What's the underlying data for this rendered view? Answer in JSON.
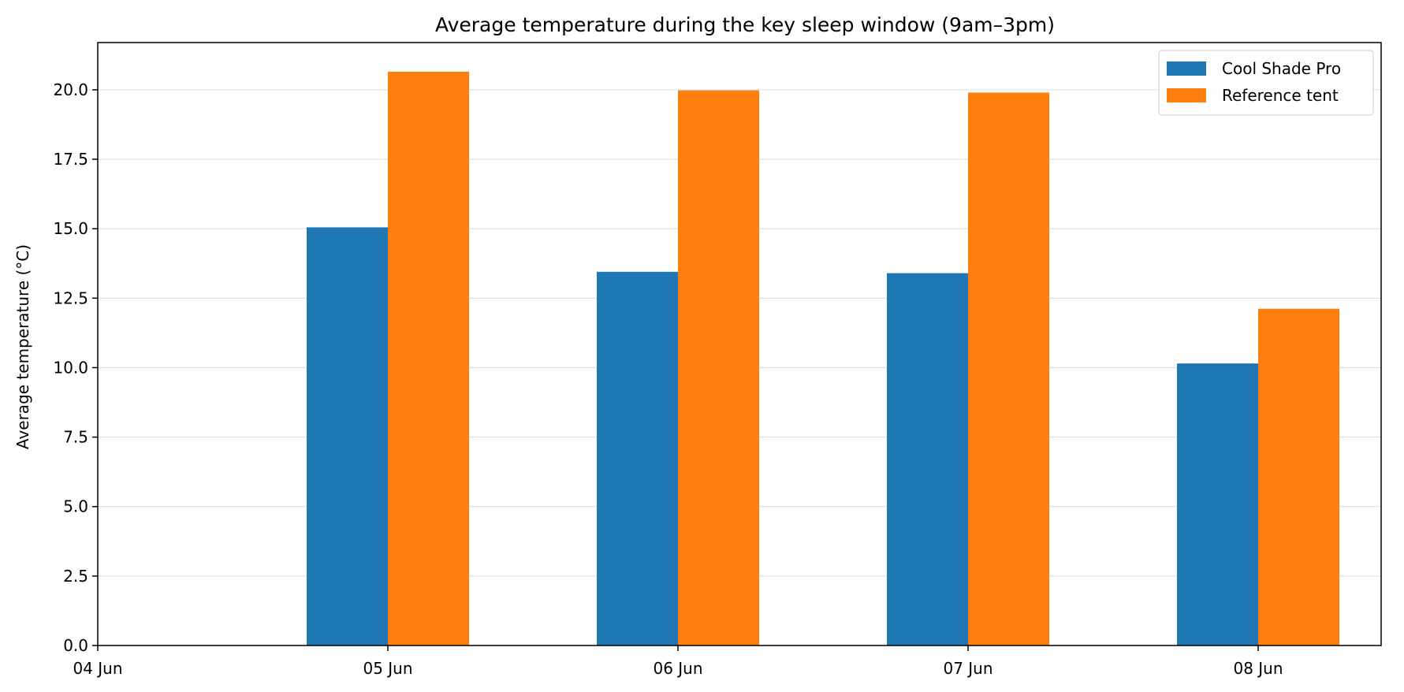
{
  "chart_data": {
    "type": "bar",
    "title": "Average temperature during the key sleep window (9am–3pm)",
    "xlabel": "",
    "ylabel": "Average temperature (°C)",
    "x_ticks": [
      "04 Jun",
      "05 Jun",
      "06 Jun",
      "07 Jun",
      "08 Jun"
    ],
    "categories": [
      "05 Jun",
      "06 Jun",
      "07 Jun",
      "08 Jun"
    ],
    "series": [
      {
        "name": "Cool Shade Pro",
        "color": "#1f77b4",
        "values": [
          15.05,
          13.45,
          13.4,
          10.15
        ]
      },
      {
        "name": "Reference tent",
        "color": "#ff7f0e",
        "values": [
          20.65,
          19.98,
          19.9,
          12.12
        ]
      }
    ],
    "ylim": [
      0,
      21.7
    ],
    "y_ticks": [
      0,
      2.5,
      5,
      7.5,
      10,
      12.5,
      15,
      17.5,
      20
    ],
    "y_tick_labels": [
      "0.0",
      "2.5",
      "5.0",
      "7.5",
      "10.0",
      "12.5",
      "15.0",
      "17.5",
      "20.0"
    ],
    "grid": "horizontal",
    "legend_position": "top-right"
  }
}
